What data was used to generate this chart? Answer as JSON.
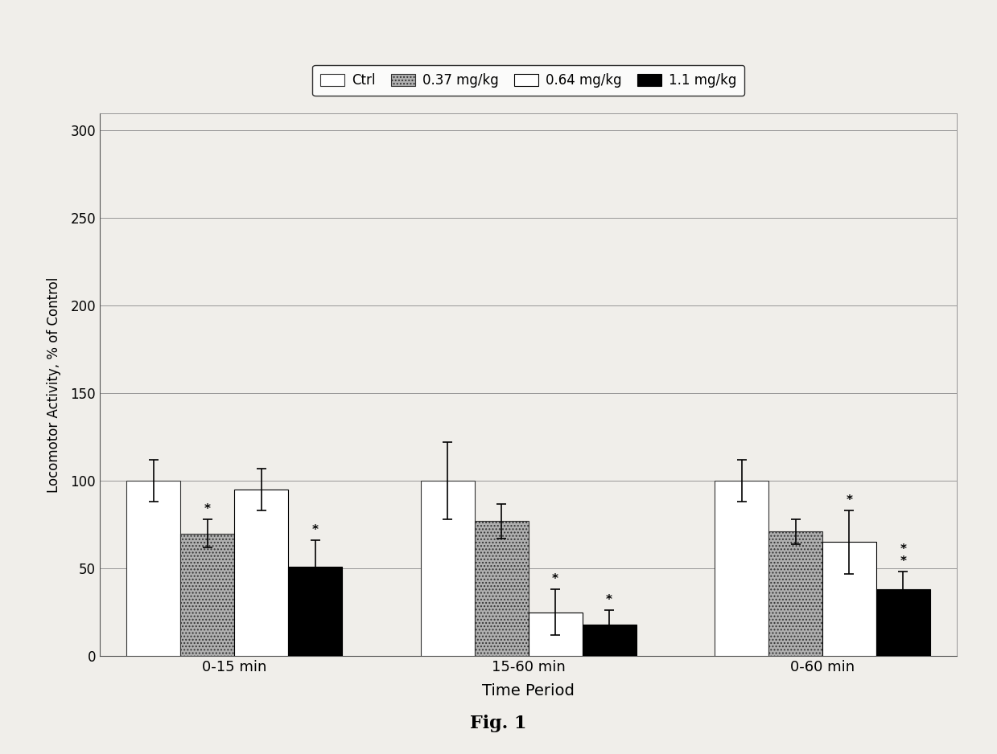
{
  "time_periods": [
    "0-15 min",
    "15-60 min",
    "0-60 min"
  ],
  "series": {
    "Ctrl": {
      "values": [
        100,
        100,
        100
      ],
      "errors": [
        12,
        22,
        12
      ],
      "color": "#ffffff",
      "hatch": "",
      "edgecolor": "#333333"
    },
    "0.37 mg/kg": {
      "values": [
        70,
        77,
        71
      ],
      "errors": [
        8,
        10,
        7
      ],
      "color": "#b0b0b0",
      "hatch": "....",
      "edgecolor": "#333333"
    },
    "0.64 mg/kg": {
      "values": [
        95,
        25,
        65
      ],
      "errors": [
        12,
        13,
        18
      ],
      "color": "#ffffff",
      "hatch": "======",
      "edgecolor": "#000000"
    },
    "1.1 mg/kg": {
      "values": [
        51,
        18,
        38
      ],
      "errors": [
        15,
        8,
        10
      ],
      "color": "#000000",
      "hatch": "",
      "edgecolor": "#000000"
    }
  },
  "series_order": [
    "Ctrl",
    "0.37 mg/kg",
    "0.64 mg/kg",
    "1.1 mg/kg"
  ],
  "ylabel": "Locomotor Activity, % of Control",
  "xlabel": "Time Period",
  "ylim": [
    0,
    310
  ],
  "yticks": [
    0,
    50,
    100,
    150,
    200,
    250,
    300
  ],
  "legend_labels": [
    "Ctrl",
    "0.37 mg/kg",
    "0.64 mg/kg",
    "1.1 mg/kg"
  ],
  "legend_hatches": [
    "",
    "....",
    "======",
    ""
  ],
  "legend_colors": [
    "#ffffff",
    "#b0b0b0",
    "#ffffff",
    "#000000"
  ],
  "legend_edgecolors": [
    "#333333",
    "#333333",
    "#000000",
    "#000000"
  ],
  "significance_markers": {
    "0-15 min": {
      "Ctrl": false,
      "0.37 mg/kg": true,
      "0.64 mg/kg": false,
      "1.1 mg/kg": true
    },
    "15-60 min": {
      "Ctrl": false,
      "0.37 mg/kg": false,
      "0.64 mg/kg": true,
      "1.1 mg/kg": true
    },
    "0-60 min": {
      "Ctrl": false,
      "0.37 mg/kg": false,
      "0.64 mg/kg": true,
      "1.1 mg/kg": true
    }
  },
  "double_star": {
    "0-60 min": {
      "1.1 mg/kg": true
    }
  },
  "bar_width": 0.22,
  "group_centers": [
    0.0,
    1.2,
    2.4
  ],
  "figsize": [
    12.39,
    9.38
  ],
  "dpi": 100,
  "background_color": "#f0eeea",
  "fig_caption": "Fig. 1"
}
